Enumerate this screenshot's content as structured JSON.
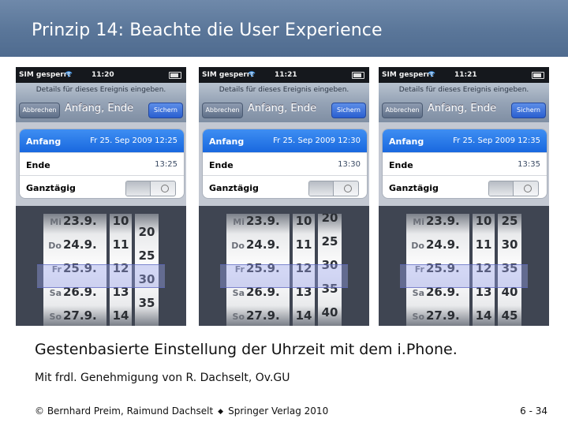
{
  "slide_title": "Prinzip 14: Beachte die User Experience",
  "phone_common": {
    "carrier": "SIM gesperrt",
    "prompt": "Details für dieses Ereignis eingeben.",
    "cancel_label": "Abbrechen",
    "nav_title": "Anfang, Ende",
    "save_label": "Sichern",
    "start_label": "Anfang",
    "end_label": "Ende",
    "allday_label": "Ganztägig",
    "picker_dates": [
      {
        "weekday": "Mi",
        "date": "23.9."
      },
      {
        "weekday": "Do",
        "date": "24.9."
      },
      {
        "weekday": "Fr",
        "date": "25.9."
      },
      {
        "weekday": "Sa",
        "date": "26.9."
      },
      {
        "weekday": "So",
        "date": "27.9."
      }
    ],
    "picker_hours": [
      "10",
      "11",
      "12",
      "13",
      "14"
    ]
  },
  "phones": [
    {
      "time": "11:20",
      "start_value": "Fr 25. Sep 2009  12:25",
      "end_value": "13:25",
      "minutes": [
        "20",
        "25",
        "30",
        "35"
      ]
    },
    {
      "time": "11:21",
      "start_value": "Fr 25. Sep 2009  12:30",
      "end_value": "13:30",
      "minutes": [
        "20",
        "25",
        "30",
        "35",
        "40"
      ]
    },
    {
      "time": "11:21",
      "start_value": "Fr 25. Sep 2009  12:35",
      "end_value": "13:35",
      "minutes": [
        "25",
        "30",
        "35",
        "40",
        "45"
      ]
    }
  ],
  "caption": "Gestenbasierte Einstellung der Uhrzeit mit dem i.Phone.",
  "credit": "Mit frdl. Genehmigung von R. Dachselt, Ov.GU",
  "footer": {
    "copyright": "© Bernhard Preim, Raimund Dachselt",
    "separator": "◆",
    "publisher": "Springer Verlag 2010",
    "page": "6 - 34"
  },
  "colors": {
    "title_bar": "#5a7699",
    "selected_row": "#1f6fe6",
    "picker_highlight": "#969fe6"
  }
}
